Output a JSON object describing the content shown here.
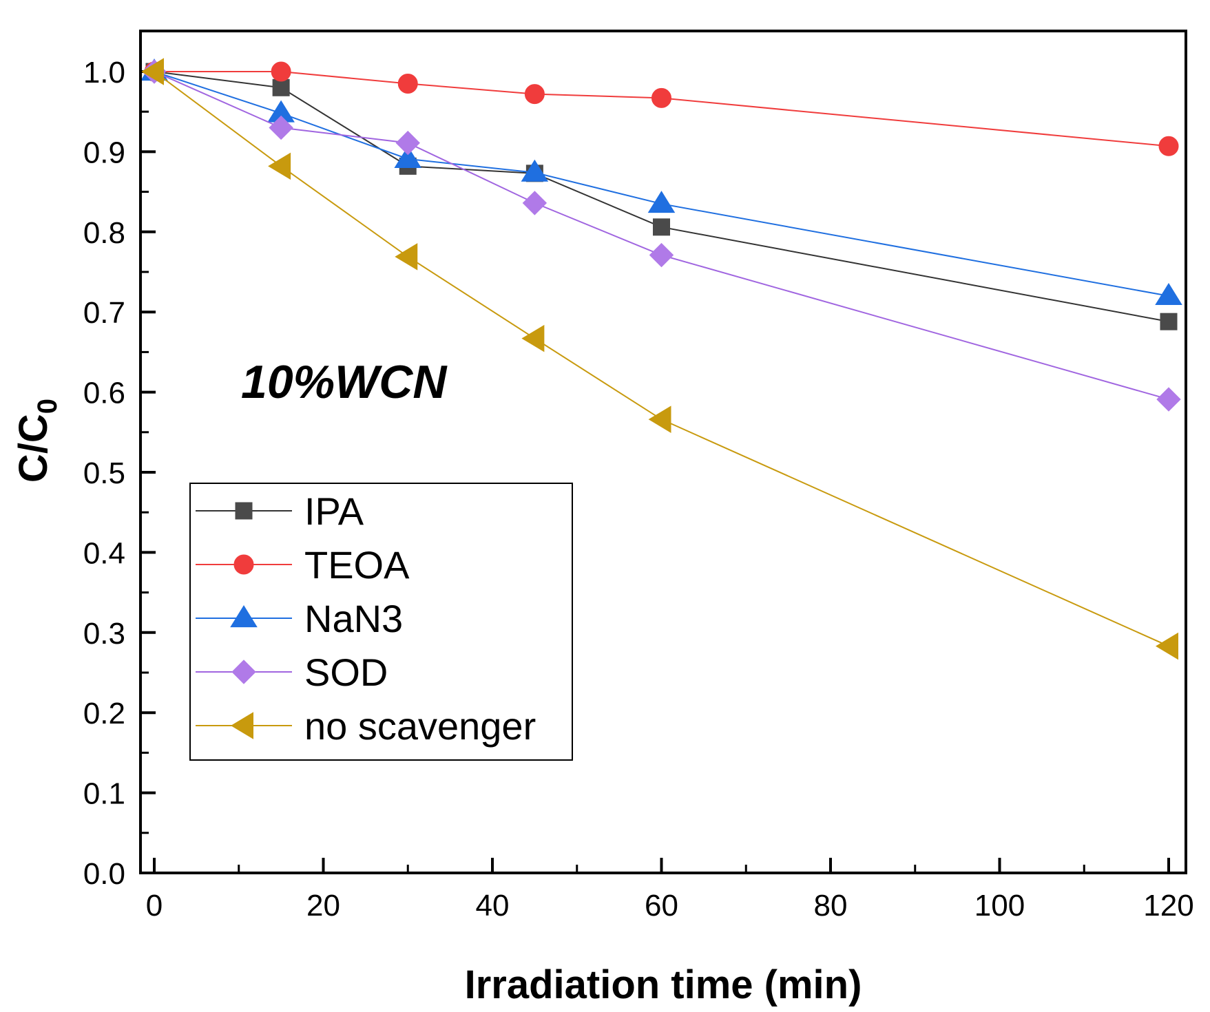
{
  "chart_data": {
    "type": "line",
    "title": "",
    "annotation": "10%WCN",
    "xlabel": "Irradiation time (min)",
    "ylabel": {
      "main": "C/C",
      "subscript": "0"
    },
    "xlim": [
      -2,
      122
    ],
    "ylim": [
      0.0,
      1.05
    ],
    "xticks": [
      0,
      20,
      40,
      60,
      80,
      100,
      120
    ],
    "xtick_labels": [
      "0",
      "20",
      "40",
      "60",
      "80",
      "100",
      "120"
    ],
    "yticks": [
      0.0,
      0.1,
      0.2,
      0.3,
      0.4,
      0.5,
      0.6,
      0.7,
      0.8,
      0.9,
      1.0
    ],
    "ytick_labels": [
      "0.0",
      "0.1",
      "0.2",
      "0.3",
      "0.4",
      "0.5",
      "0.6",
      "0.7",
      "0.8",
      "0.9",
      "1.0"
    ],
    "grid": false,
    "legend_position": "lower-left",
    "x": [
      0,
      15,
      30,
      45,
      60,
      120
    ],
    "series": [
      {
        "name": "IPA",
        "marker": "square",
        "color": "#4a4a4a",
        "line_color": "#333333",
        "values": [
          1.0,
          0.98,
          0.882,
          0.873,
          0.806,
          0.688
        ]
      },
      {
        "name": "TEOA",
        "marker": "circle",
        "color": "#f03c3c",
        "line_color": "#f03c3c",
        "values": [
          1.0,
          1.0,
          0.985,
          0.972,
          0.967,
          0.907
        ]
      },
      {
        "name": "NaN3",
        "marker": "triangle-up",
        "color": "#1f6fe0",
        "line_color": "#1f6fe0",
        "values": [
          1.0,
          0.948,
          0.891,
          0.874,
          0.835,
          0.72
        ]
      },
      {
        "name": "SOD",
        "marker": "diamond",
        "color": "#b07ae8",
        "line_color": "#a065e0",
        "values": [
          1.0,
          0.93,
          0.911,
          0.836,
          0.771,
          0.591
        ]
      },
      {
        "name": "no scavenger",
        "marker": "triangle-left",
        "color": "#c89a0e",
        "line_color": "#c89a0e",
        "values": [
          1.0,
          0.882,
          0.769,
          0.667,
          0.566,
          0.283
        ]
      }
    ]
  }
}
